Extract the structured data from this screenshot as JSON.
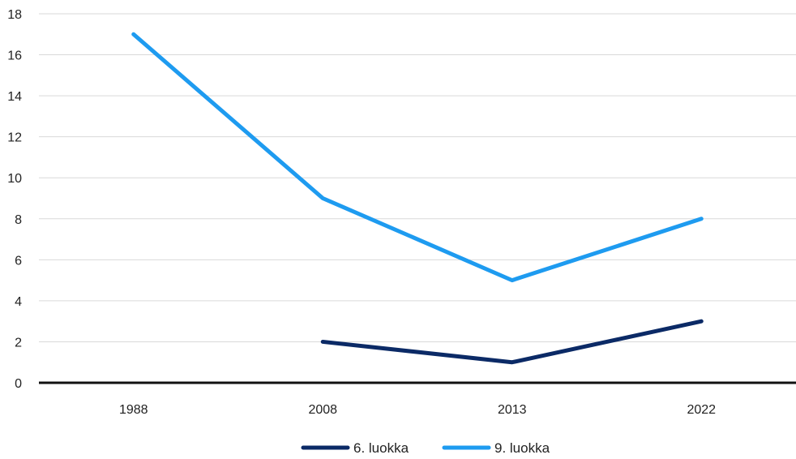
{
  "chart_data": {
    "type": "line",
    "title": "",
    "xlabel": "",
    "ylabel": "",
    "categories": [
      "1988",
      "2008",
      "2013",
      "2022"
    ],
    "ylim": [
      0,
      18
    ],
    "yticks": [
      "0",
      "2",
      "4",
      "6",
      "8",
      "10",
      "12",
      "14",
      "16",
      "18"
    ],
    "grid": true,
    "legend_position": "bottom",
    "series": [
      {
        "name": "6. luokka",
        "color": "#0b2a66",
        "values": [
          null,
          2,
          1,
          3
        ]
      },
      {
        "name": "9. luokka",
        "color": "#1e9bf0",
        "values": [
          17,
          9,
          5,
          8
        ]
      }
    ]
  }
}
